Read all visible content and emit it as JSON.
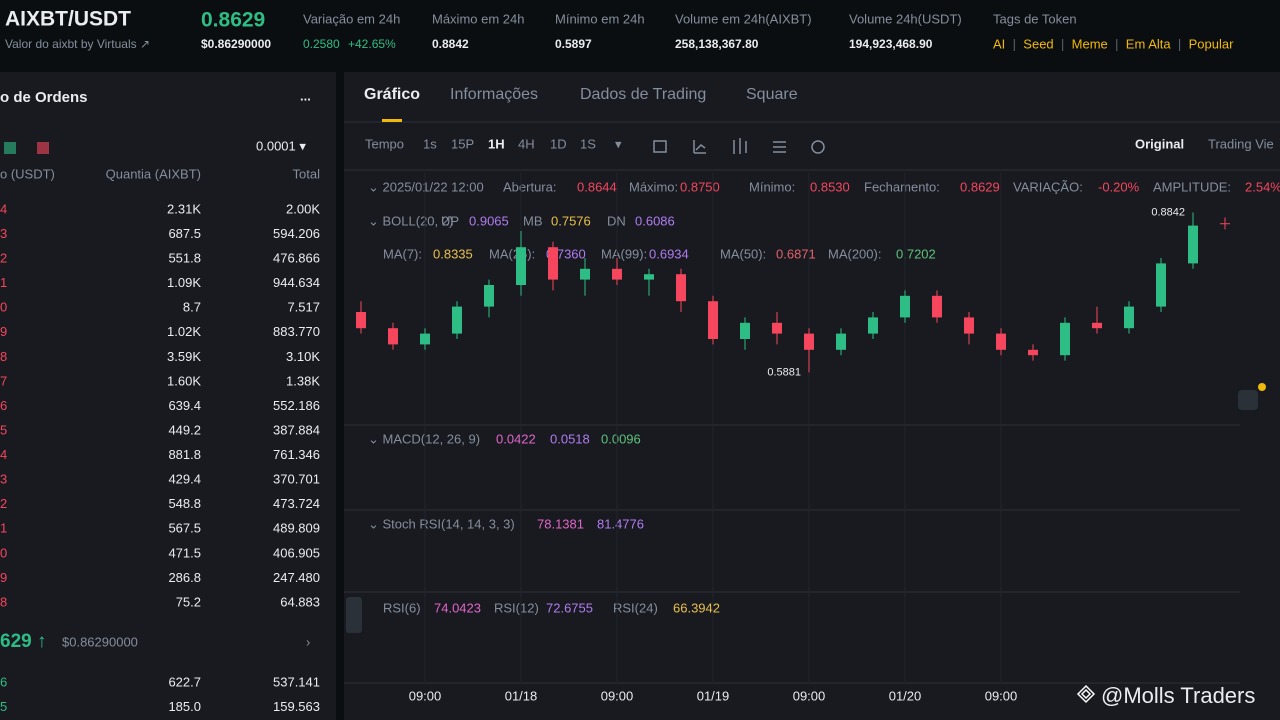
{
  "header": {
    "pair": "AIXBT/USDT",
    "subtitle": "Valor do aixbt by Virtuals ↗",
    "price": "0.8629",
    "price_usd": "$0.86290000",
    "stats": [
      {
        "label": "Variação em 24h",
        "value": "0.2580",
        "change": "+42.65%"
      },
      {
        "label": "Máximo em 24h",
        "value": "0.8842"
      },
      {
        "label": "Mínimo em 24h",
        "value": "0.5897"
      },
      {
        "label": "Volume em 24h(AIXBT)",
        "value": "258,138,367.80"
      },
      {
        "label": "Volume 24h(USDT)",
        "value": "194,923,468.90"
      }
    ],
    "tags_label": "Tags de Token",
    "tags": [
      "AI",
      "Seed",
      "Meme",
      "Em Alta",
      "Popular"
    ]
  },
  "order_book": {
    "title": "o de Ordens",
    "more": "...",
    "step": "0.0001 ▾",
    "columns": [
      "o (USDT)",
      "Quantia (AIXBT)",
      "Total"
    ],
    "asks": [
      [
        "4",
        "2.31K",
        "2.00K"
      ],
      [
        "3",
        "687.5",
        "594.206"
      ],
      [
        "2",
        "551.8",
        "476.866"
      ],
      [
        "1",
        "1.09K",
        "944.634"
      ],
      [
        "0",
        "8.7",
        "7.517"
      ],
      [
        "9",
        "1.02K",
        "883.770"
      ],
      [
        "8",
        "3.59K",
        "3.10K"
      ],
      [
        "7",
        "1.60K",
        "1.38K"
      ],
      [
        "6",
        "639.4",
        "552.186"
      ],
      [
        "5",
        "449.2",
        "387.884"
      ],
      [
        "4",
        "881.8",
        "761.346"
      ],
      [
        "3",
        "429.4",
        "370.701"
      ],
      [
        "2",
        "548.8",
        "473.724"
      ],
      [
        "1",
        "567.5",
        "489.809"
      ],
      [
        "0",
        "471.5",
        "406.905"
      ],
      [
        "9",
        "286.8",
        "247.480"
      ],
      [
        "8",
        "75.2",
        "64.883"
      ]
    ],
    "last_price": "629 ↑",
    "last_price_usd": "$0.86290000",
    "arrow": "›",
    "bids": [
      [
        "6",
        "622.7",
        "537.141"
      ],
      [
        "5",
        "185.0",
        "159.563"
      ]
    ]
  },
  "panel": {
    "tabs": [
      "Gráfico",
      "Informações",
      "Dados de Trading",
      "Square"
    ],
    "toolbar": [
      "Tempo",
      "1s",
      "15P",
      "1H",
      "4H",
      "1D",
      "1S",
      "▾"
    ],
    "views": [
      "Original",
      "Trading Vie"
    ],
    "info": [
      [
        "⌄ 2025/01/22 12:00",
        ""
      ],
      [
        "Abertura:",
        "0.8644"
      ],
      [
        "Máximo:",
        "0.8750"
      ],
      [
        "Mínimo:",
        "0.8530"
      ],
      [
        "Fechamento:",
        "0.8629"
      ],
      [
        "VARIAÇÃO:",
        "-0.20%"
      ],
      [
        "AMPLITUDE:",
        "2.54%"
      ]
    ],
    "boll": [
      [
        "⌄ BOLL(20, 2)",
        ""
      ],
      [
        "UP",
        "0.9065"
      ],
      [
        "MB",
        "0.7576"
      ],
      [
        "DN",
        "0.6086"
      ]
    ],
    "ma": [
      [
        "MA(7):",
        "0.8335"
      ],
      [
        "MA(25):",
        "0.7360"
      ],
      [
        "MA(99):",
        "0.6934"
      ],
      [
        "MA(50):",
        "0.6871"
      ],
      [
        "MA(200):",
        "0.7202"
      ]
    ],
    "macd": [
      "⌄ MACD(12, 26, 9)",
      "0.0422",
      "0.0518",
      "0.0096"
    ],
    "stoch": [
      "⌄ Stoch RSI(14, 14, 3, 3)",
      "78.1381",
      "81.4776"
    ],
    "rsi": [
      [
        "RSI(6)",
        "74.0423"
      ],
      [
        "RSI(12)",
        "72.6755"
      ],
      [
        "RSI(24)",
        "66.3942"
      ]
    ],
    "watermark": "@Molls Traders"
  },
  "chart_data": {
    "type": "candlestick",
    "up_color": "#2ebd85",
    "down_color": "#f6465d",
    "categories": [
      null,
      null,
      "09:00",
      null,
      null,
      "01/18",
      null,
      null,
      "09:00",
      null,
      null,
      "01/19",
      null,
      null,
      "09:00",
      null,
      null,
      "01/20",
      null,
      null,
      "09:00",
      null,
      null,
      null,
      null,
      null,
      null,
      null
    ],
    "open": [
      0.7,
      0.67,
      0.64,
      0.66,
      0.71,
      0.75,
      0.82,
      0.76,
      0.78,
      0.76,
      0.77,
      0.72,
      0.65,
      0.68,
      0.66,
      0.63,
      0.66,
      0.69,
      0.73,
      0.69,
      0.66,
      0.63,
      0.62,
      0.68,
      0.67,
      0.71,
      0.79,
      0.8644
    ],
    "high": [
      0.72,
      0.68,
      0.67,
      0.72,
      0.76,
      0.85,
      0.83,
      0.8,
      0.8,
      0.78,
      0.78,
      0.73,
      0.69,
      0.7,
      0.67,
      0.67,
      0.7,
      0.74,
      0.74,
      0.7,
      0.67,
      0.64,
      0.69,
      0.71,
      0.72,
      0.8,
      0.8842,
      0.875
    ],
    "low": [
      0.66,
      0.63,
      0.63,
      0.65,
      0.69,
      0.73,
      0.74,
      0.73,
      0.75,
      0.73,
      0.7,
      0.64,
      0.63,
      0.64,
      0.5881,
      0.62,
      0.65,
      0.68,
      0.68,
      0.64,
      0.62,
      0.61,
      0.61,
      0.66,
      0.66,
      0.7,
      0.78,
      0.853
    ],
    "close": [
      0.67,
      0.64,
      0.66,
      0.71,
      0.75,
      0.82,
      0.76,
      0.78,
      0.76,
      0.77,
      0.72,
      0.65,
      0.68,
      0.66,
      0.63,
      0.66,
      0.69,
      0.73,
      0.69,
      0.66,
      0.63,
      0.62,
      0.68,
      0.67,
      0.71,
      0.79,
      0.86,
      0.8629
    ],
    "ylim": [
      0.55,
      0.9
    ]
  }
}
